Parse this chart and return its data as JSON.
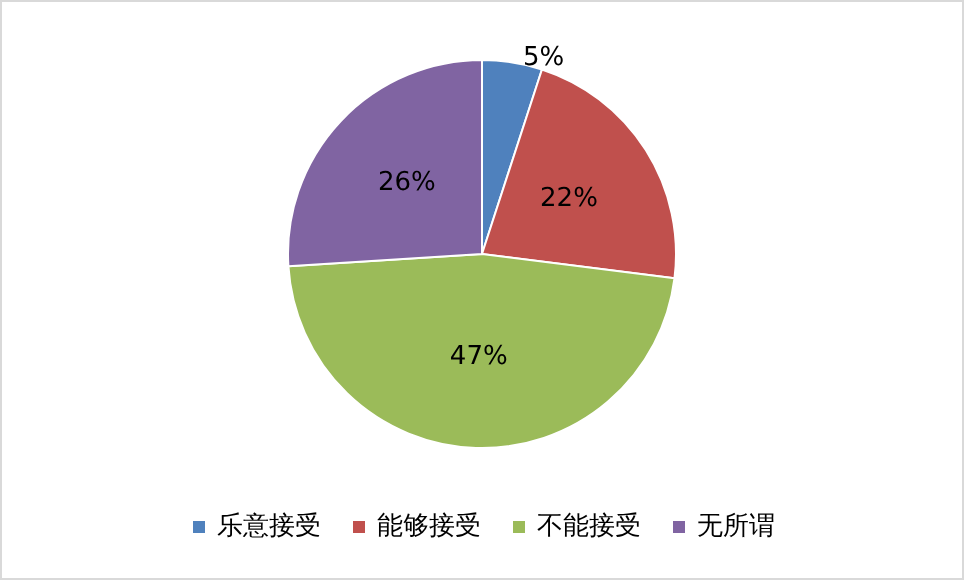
{
  "chart_data": {
    "type": "pie",
    "categories": [
      "乐意接受",
      "能够接受",
      "不能接受",
      "无所谓"
    ],
    "values": [
      5,
      22,
      47,
      26
    ],
    "colors": [
      "#4f81bd",
      "#c0504d",
      "#9bbb59",
      "#8064a2"
    ],
    "value_labels": [
      "5%",
      "22%",
      "47%",
      "26%"
    ],
    "legend": "bottom"
  }
}
